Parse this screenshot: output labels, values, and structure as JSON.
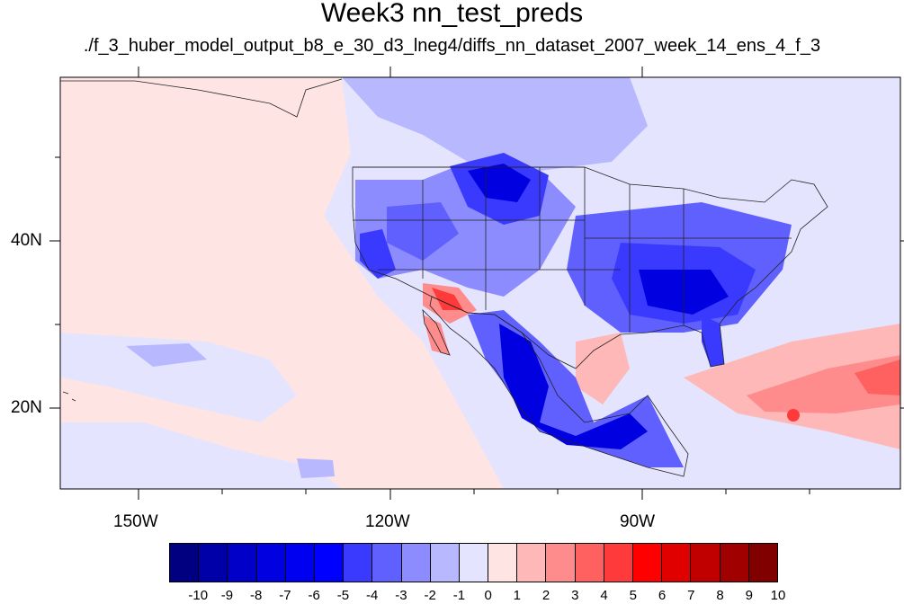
{
  "title": "Week3 nn_test_preds",
  "subtitle": "./f_3_huber_model_output_b8_e_30_d3_lneg4/diffs_nn_dataset_2007_week_14_ens_4_f_3",
  "axes": {
    "lon_labels": [
      "150W",
      "120W",
      "90W"
    ],
    "lat_labels": [
      "40N",
      "20N"
    ]
  },
  "colorbar": {
    "labels": [
      "-10",
      "-9",
      "-8",
      "-7",
      "-6",
      "-5",
      "-4",
      "-3",
      "-2",
      "-1",
      "0",
      "1",
      "2",
      "3",
      "4",
      "5",
      "6",
      "7",
      "8",
      "9",
      "10"
    ],
    "colors": [
      "#000080",
      "#0000a8",
      "#0000c8",
      "#0000e0",
      "#0000f0",
      "#0000ff",
      "#3a3aff",
      "#6060ff",
      "#8c8cff",
      "#b8b8ff",
      "#e4e4ff",
      "#ffe4e4",
      "#ffb8b8",
      "#ff8c8c",
      "#ff6060",
      "#ff3a3a",
      "#ff0000",
      "#e00000",
      "#c00000",
      "#a00000",
      "#800000"
    ]
  }
}
